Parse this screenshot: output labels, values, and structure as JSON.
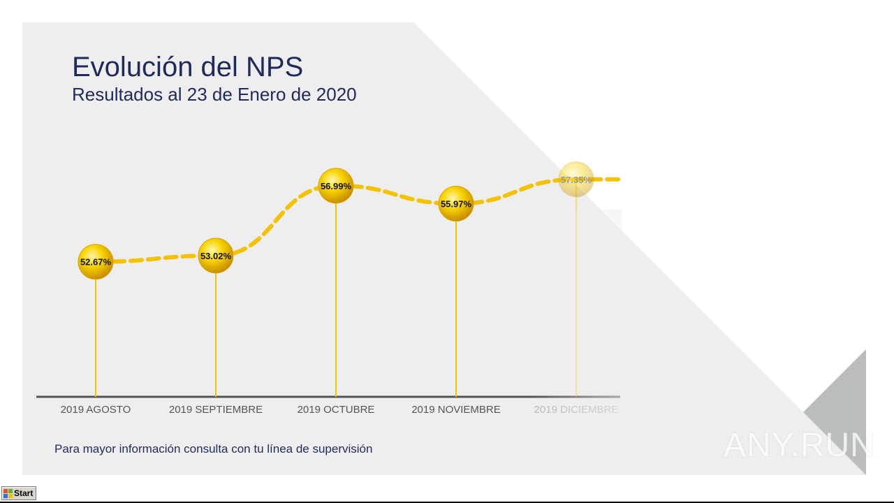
{
  "slide": {
    "title": "Evolución del NPS",
    "subtitle": "Resultados al 23 de Enero de 2020",
    "footer": "Para mayor información consulta con tu línea de supervisión",
    "watermark": "ANY.RUN"
  },
  "taskbar": {
    "start_label": "Start"
  },
  "colors": {
    "accent": "#f5c200",
    "title": "#1f2a5c",
    "panel": "#eeeeee",
    "axis": "#555555",
    "triangle": "#b9bdbe"
  },
  "chart_data": {
    "type": "line",
    "categories": [
      "2019 AGOSTO",
      "2019 SEPTIEMBRE",
      "2019 OCTUBRE",
      "2019 NOVIEMBRE",
      "2019 DICIEMBRE"
    ],
    "values": [
      52.67,
      53.02,
      56.99,
      55.97,
      57.35
    ],
    "value_labels": [
      "52.67%",
      "53.02%",
      "56.99%",
      "55.97%",
      "57.35%"
    ],
    "ylim": [
      45,
      60
    ],
    "grid": false,
    "legend": "none"
  }
}
